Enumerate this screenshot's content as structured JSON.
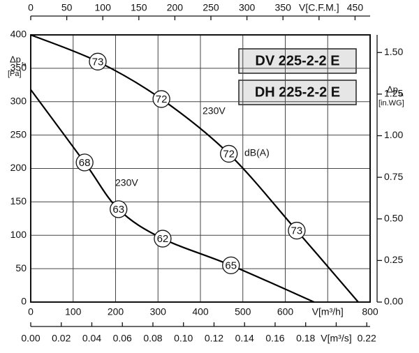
{
  "chart_data": {
    "type": "line",
    "xlim": [
      0,
      800
    ],
    "xticks": [
      0,
      100,
      200,
      300,
      400,
      500,
      600,
      {
        "value": 700,
        "label": "V[m³/h]"
      },
      800
    ],
    "x2lim": [
      0,
      470.9
    ],
    "x2ticks": [
      0,
      50,
      100,
      150,
      200,
      250,
      300,
      350,
      {
        "value": 400,
        "label": "V[C.F.M.]"
      },
      450
    ],
    "x3lim": [
      0,
      0.2222
    ],
    "x3ticks": [
      {
        "value": 0,
        "label": "0.00"
      },
      0.02,
      0.04,
      0.06,
      0.08,
      {
        "value": 0.1,
        "label": "0.10"
      },
      0.12,
      0.14,
      0.16,
      0.18,
      {
        "value": 0.2,
        "label": "V[m³/s]"
      },
      0.22
    ],
    "ylim": [
      0,
      400
    ],
    "yticks": [
      0,
      50,
      100,
      150,
      200,
      250,
      300,
      350,
      400
    ],
    "ylabel": "Δp",
    "ylabel_sub": "fa",
    "ylabel_unit": "[Pa]",
    "y2lim": [
      0,
      1.606
    ],
    "y2ticks": [
      {
        "value": 0,
        "label": "0.00"
      },
      0.25,
      {
        "value": 0.5,
        "label": "0.50"
      },
      0.75,
      {
        "value": 1,
        "label": "1.00"
      },
      1.25,
      {
        "value": 1.5,
        "label": "1.50"
      }
    ],
    "y2label": "Δp",
    "y2label_sub": "fa",
    "y2label_unit": "[in.WG]",
    "grid": true,
    "models": [
      "DV 225-2-2 E",
      "DH 225-2-2 E"
    ],
    "db_unit": "dB(A)",
    "series": [
      {
        "label": "230V",
        "color": "#000000",
        "x": [
          0,
          158,
          308,
          467,
          627,
          772
        ],
        "values": [
          400,
          360,
          304,
          222,
          107,
          0
        ],
        "db": [
          null,
          73,
          72,
          72,
          73,
          null
        ]
      },
      {
        "label": "230V",
        "color": "#000000",
        "x": [
          0,
          127,
          207,
          311,
          472,
          668
        ],
        "values": [
          318,
          209,
          139,
          95,
          55,
          0
        ],
        "db": [
          null,
          68,
          63,
          62,
          65,
          null
        ]
      }
    ]
  }
}
